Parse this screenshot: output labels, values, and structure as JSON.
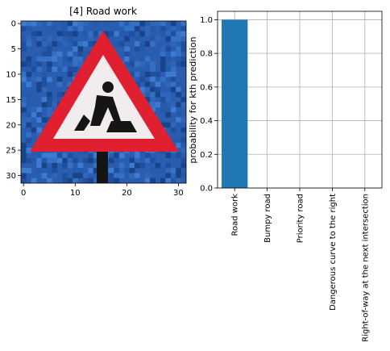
{
  "chart_data": [
    {
      "type": "image",
      "title": "[4] Road work",
      "x_ticks": [
        0,
        10,
        20,
        30
      ],
      "y_ticks": [
        0,
        5,
        10,
        15,
        20,
        25,
        30
      ],
      "xlim": [
        -0.5,
        31.5
      ],
      "ylim": [
        -0.5,
        31.5
      ],
      "image_content": "pixelated photo of a red triangular road-work warning sign on a blue background",
      "colors": {
        "background": "#2a5db0",
        "sign_border": "#e02030",
        "sign_fill": "#f2ecef",
        "symbol": "#151515"
      }
    },
    {
      "type": "bar",
      "categories": [
        "Road work",
        "Bumpy road",
        "Priority road",
        "Dangerous curve to the right",
        "Right-of-way at the next intersection"
      ],
      "values": [
        1.0,
        0.0,
        0.0,
        0.0,
        0.0
      ],
      "ylabel": "probability for kth prediction",
      "ylim": [
        0,
        1.05
      ],
      "y_ticks": [
        0.0,
        0.2,
        0.4,
        0.6,
        0.8,
        1.0
      ],
      "grid": true,
      "bar_color": "#1f77b4"
    }
  ]
}
